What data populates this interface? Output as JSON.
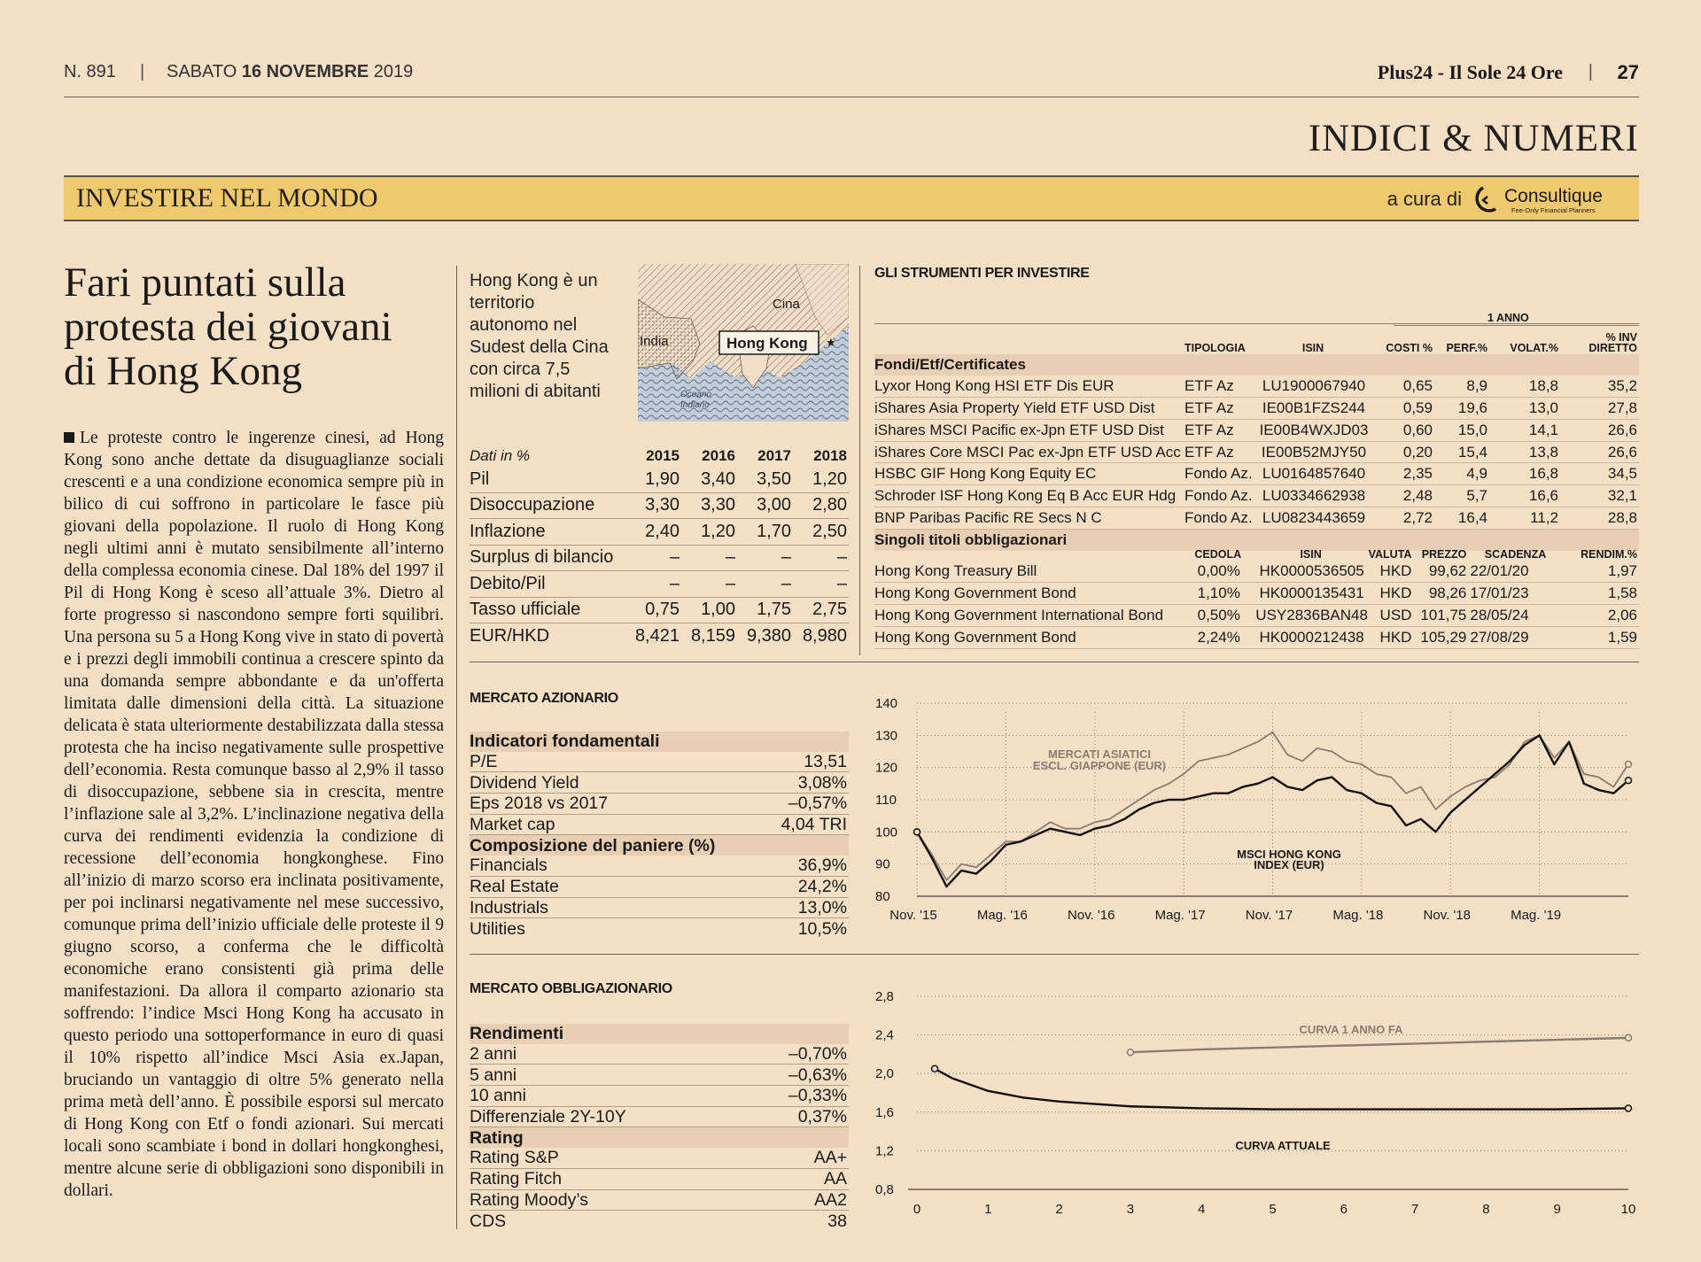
{
  "header": {
    "issue": "N. 891",
    "separator": "|",
    "date_prefix": "SABATO",
    "date_bold": "16 NOVEMBRE",
    "date_year": "2019",
    "publication": "Plus24 - Il Sole 24 Ore",
    "page_number": "27"
  },
  "section_title": "INDICI & NUMERI",
  "band": {
    "title": "INVESTIRE NEL MONDO",
    "credit": "a cura di",
    "logo_name": "Consultique",
    "logo_tagline": "Fee-Only Financial Planners"
  },
  "article": {
    "headline": [
      "Fari puntati sulla",
      "protesta dei giovani",
      "di Hong Kong"
    ],
    "body": "Le proteste contro le ingerenze cinesi, ad Hong Kong sono anche dettate da disuguaglianze sociali crescenti e a una condizione economica sempre più in bilico di cui soffrono in particolare le fasce più giovani della popolazione. Il ruolo di Hong Kong negli ultimi anni è mutato sensibilmente all’interno della complessa economia cinese. Dal 18% del 1997 il Pil di Hong Kong è sceso all’attuale 3%. Dietro al forte progresso si nascondono sempre forti squilibri. Una persona su 5 a Hong Kong vive in stato di povertà e i prezzi degli immobili continua a crescere spinto da una domanda sempre abbondante e da un'offerta limitata dalle dimensioni della città. La situazione delicata è stata ulteriormente destabilizzata dalla stessa protesta che ha inciso negativamente sulle prospettive dell’economia. Resta comunque basso al 2,9% il tasso di disoccupazione, sebbene sia in crescita, mentre l’inflazione sale al 3,2%. L’inclinazione negativa della curva dei rendimenti evidenzia la condizione di recessione dell’economia hongkonghese. Fino all’inizio di marzo scorso era inclinata positivamente, per poi inclinarsi negativamente nel mese successivo, comunque prima dell’inizio ufficiale delle proteste il 9 giugno scorso, a conferma che le difficoltà economiche erano consistenti già prima delle manifestazioni. Da allora il comparto azionario sta soffrendo: l’indice Msci Hong Kong ha accusato in questo periodo una sottoperformance in euro di quasi il 10% rispetto all’indice Msci Asia ex.Japan, bruciando un vantaggio di oltre 5% generato nella prima metà dell’anno. È possibile esporsi sul mercato di Hong Kong con Etf o fondi azionari. Sui mercati locali sono scambiate i bond in dollari hongkonghesi, mentre alcune serie di obbligazioni sono disponibili in dollari."
  },
  "intro": "Hong Kong è un territorio autonomo nel Sudest della Cina con circa 7,5 milioni di abitanti",
  "map": {
    "labels": {
      "cina": "Cina",
      "india": "India",
      "hk": "Hong Kong",
      "ocean_1": "Oceano",
      "ocean_2": "Indiano"
    }
  },
  "macro": {
    "header_label": "Dati in %",
    "years": [
      "2015",
      "2016",
      "2017",
      "2018"
    ],
    "rows": [
      {
        "label": "Pil",
        "values": [
          "1,90",
          "3,40",
          "3,50",
          "1,20"
        ]
      },
      {
        "label": "Disoccupazione",
        "values": [
          "3,30",
          "3,30",
          "3,00",
          "2,80"
        ]
      },
      {
        "label": "Inflazione",
        "values": [
          "2,40",
          "1,20",
          "1,70",
          "2,50"
        ]
      },
      {
        "label": "Surplus di bilancio",
        "values": [
          "–",
          "–",
          "–",
          "–"
        ]
      },
      {
        "label": "Debito/Pil",
        "values": [
          "–",
          "–",
          "–",
          "–"
        ]
      },
      {
        "label": "Tasso ufficiale",
        "values": [
          "0,75",
          "1,00",
          "1,75",
          "2,75"
        ]
      },
      {
        "label": "EUR/HKD",
        "values": [
          "8,421",
          "8,159",
          "9,380",
          "8,980"
        ]
      }
    ]
  },
  "instruments": {
    "title": "GLI STRUMENTI PER INVESTIRE",
    "group_header": "1 ANNO",
    "columns": [
      "TIPOLOGIA",
      "ISIN",
      "COSTI %",
      "PERF.%",
      "VOLAT.%",
      "% INV DIRETTO"
    ],
    "funds_group": "Fondi/Etf/Certificates",
    "funds": [
      {
        "name": "Lyxor Hong Kong HSI ETF Dis EUR",
        "type": "ETF Az",
        "isin": "LU1900067940",
        "costs": "0,65",
        "perf": "8,9",
        "volat": "18,8",
        "direct": "35,2"
      },
      {
        "name": "iShares Asia Property Yield ETF USD Dist",
        "type": "ETF Az",
        "isin": "IE00B1FZS244",
        "costs": "0,59",
        "perf": "19,6",
        "volat": "13,0",
        "direct": "27,8"
      },
      {
        "name": "iShares MSCI Pacific ex-Jpn ETF USD Dist",
        "type": "ETF Az",
        "isin": "IE00B4WXJD03",
        "costs": "0,60",
        "perf": "15,0",
        "volat": "14,1",
        "direct": "26,6"
      },
      {
        "name": "iShares Core MSCI Pac ex-Jpn ETF USD Acc",
        "type": "ETF Az",
        "isin": "IE00B52MJY50",
        "costs": "0,20",
        "perf": "15,4",
        "volat": "13,8",
        "direct": "26,6"
      },
      {
        "name": "HSBC GIF Hong Kong Equity EC",
        "type": "Fondo Az.",
        "isin": "LU0164857640",
        "costs": "2,35",
        "perf": "4,9",
        "volat": "16,8",
        "direct": "34,5"
      },
      {
        "name": "Schroder ISF Hong Kong Eq B Acc EUR Hdg",
        "type": "Fondo Az.",
        "isin": "LU0334662938",
        "costs": "2,48",
        "perf": "5,7",
        "volat": "16,6",
        "direct": "32,1"
      },
      {
        "name": "BNP Paribas Pacific RE Secs N C",
        "type": "Fondo Az.",
        "isin": "LU0823443659",
        "costs": "2,72",
        "perf": "16,4",
        "volat": "11,2",
        "direct": "28,8"
      }
    ],
    "bonds_group": "Singoli titoli obbligazionari",
    "bond_columns": [
      "CEDOLA",
      "ISIN",
      "VALUTA",
      "PREZZO",
      "SCADENZA",
      "RENDIM.%"
    ],
    "bonds": [
      {
        "name": "Hong Kong Treasury Bill",
        "coupon": "0,00%",
        "isin": "HK0000536505",
        "ccy": "HKD",
        "price": "99,62",
        "maturity": "22/01/20",
        "yield": "1,97"
      },
      {
        "name": "Hong Kong Government Bond",
        "coupon": "1,10%",
        "isin": "HK0000135431",
        "ccy": "HKD",
        "price": "98,26",
        "maturity": "17/01/23",
        "yield": "1,58"
      },
      {
        "name": "Hong Kong Government International Bond",
        "coupon": "0,50%",
        "isin": "USY2836BAN48",
        "ccy": "USD",
        "price": "101,75",
        "maturity": "28/05/24",
        "yield": "2,06"
      },
      {
        "name": "Hong Kong Government Bond",
        "coupon": "2,24%",
        "isin": "HK0000212438",
        "ccy": "HKD",
        "price": "105,29",
        "maturity": "27/08/29",
        "yield": "1,59"
      }
    ]
  },
  "equity": {
    "title": "MERCATO AZIONARIO",
    "group1": "Indicatori fondamentali",
    "fundamentals": [
      {
        "label": "P/E",
        "value": "13,51"
      },
      {
        "label": "Dividend Yield",
        "value": "3,08%"
      },
      {
        "label": "Eps 2018 vs 2017",
        "value": "–0,57%"
      },
      {
        "label": "Market cap",
        "value": "4,04 TRI"
      }
    ],
    "group2": "Composizione del paniere (%)",
    "composition": [
      {
        "label": "Financials",
        "value": "36,9%"
      },
      {
        "label": "Real Estate",
        "value": "24,2%"
      },
      {
        "label": "Industrials",
        "value": "13,0%"
      },
      {
        "label": "Utilities",
        "value": "10,5%"
      }
    ]
  },
  "bondmarket": {
    "title": "MERCATO OBBLIGAZIONARIO",
    "group1": "Rendimenti",
    "yields": [
      {
        "label": "2 anni",
        "value": "–0,70%"
      },
      {
        "label": "5 anni",
        "value": "–0,63%"
      },
      {
        "label": "10 anni",
        "value": "–0,33%"
      },
      {
        "label": "Differenziale 2Y-10Y",
        "value": "0,37%"
      }
    ],
    "group2": "Rating",
    "ratings": [
      {
        "label": "Rating S&P",
        "value": "AA+"
      },
      {
        "label": "Rating Fitch",
        "value": "AA"
      },
      {
        "label": "Rating Moody’s",
        "value": "AA2"
      },
      {
        "label": "CDS",
        "value": "38"
      }
    ]
  },
  "chart_data": [
    {
      "type": "line",
      "title": "",
      "xlabel": "",
      "ylabel": "",
      "x_ticks": [
        "Nov. '15",
        "Mag. '16",
        "Nov. '16",
        "Mag. '17",
        "Nov. '17",
        "Mag. '18",
        "Nov. '18",
        "Mag. '19"
      ],
      "x_range": [
        0,
        48
      ],
      "ylim": [
        80,
        140
      ],
      "y_ticks": [
        80,
        90,
        100,
        110,
        120,
        130,
        140
      ],
      "grid": "horizontal dotted",
      "x": [
        0,
        1,
        2,
        3,
        4,
        5,
        6,
        7,
        8,
        9,
        10,
        11,
        12,
        13,
        14,
        15,
        16,
        17,
        18,
        19,
        20,
        21,
        22,
        23,
        24,
        25,
        26,
        27,
        28,
        29,
        30,
        31,
        32,
        33,
        34,
        35,
        36,
        37,
        38,
        39,
        40,
        41,
        42,
        43,
        44,
        45,
        46,
        47,
        48
      ],
      "series": [
        {
          "name": "MERCATI ASIATICI ESCL. GIAPPONE (EUR)",
          "color": "#8a7d70",
          "values": [
            100,
            93,
            85,
            90,
            89,
            93,
            97,
            97,
            100,
            103,
            101,
            101,
            103,
            104,
            107,
            110,
            113,
            115,
            118,
            122,
            123,
            124,
            126,
            128,
            131,
            124,
            122,
            126,
            125,
            122,
            121,
            118,
            117,
            112,
            114,
            107,
            111,
            114,
            116,
            117,
            121,
            128,
            130,
            123,
            128,
            118,
            117,
            114,
            121
          ]
        },
        {
          "name": "MSCI HONG KONG INDEX (EUR)",
          "color": "#111111",
          "values": [
            100,
            92,
            83,
            88,
            87,
            91,
            96,
            97,
            99,
            101,
            100,
            99,
            101,
            102,
            104,
            107,
            109,
            110,
            110,
            111,
            112,
            112,
            114,
            115,
            117,
            114,
            113,
            116,
            117,
            113,
            112,
            109,
            108,
            102,
            104,
            100,
            106,
            110,
            114,
            118,
            122,
            127,
            130,
            121,
            128,
            115,
            113,
            112,
            116
          ]
        }
      ]
    },
    {
      "type": "line",
      "title": "",
      "xlabel": "",
      "ylabel": "",
      "x_ticks": [
        "0",
        "1",
        "2",
        "3",
        "4",
        "5",
        "6",
        "7",
        "8",
        "9",
        "10"
      ],
      "xlim": [
        0,
        10
      ],
      "ylim": [
        0.8,
        2.8
      ],
      "y_ticks": [
        "0,8",
        "1,2",
        "1,6",
        "2,0",
        "2,4",
        "2,8"
      ],
      "grid": "horizontal dotted",
      "series": [
        {
          "name": "CURVA 1 ANNO FA",
          "color": "#8a7d70",
          "x": [
            3,
            4,
            5,
            6,
            7,
            8,
            9,
            10
          ],
          "values": [
            2.22,
            2.25,
            2.27,
            2.29,
            2.31,
            2.33,
            2.35,
            2.37
          ]
        },
        {
          "name": "CURVA ATTUALE",
          "color": "#111111",
          "x": [
            0.25,
            0.5,
            1,
            1.5,
            2,
            3,
            4,
            5,
            6,
            7,
            8,
            9,
            10
          ],
          "values": [
            2.05,
            1.95,
            1.82,
            1.75,
            1.71,
            1.66,
            1.64,
            1.63,
            1.63,
            1.63,
            1.63,
            1.63,
            1.64
          ]
        }
      ]
    }
  ]
}
